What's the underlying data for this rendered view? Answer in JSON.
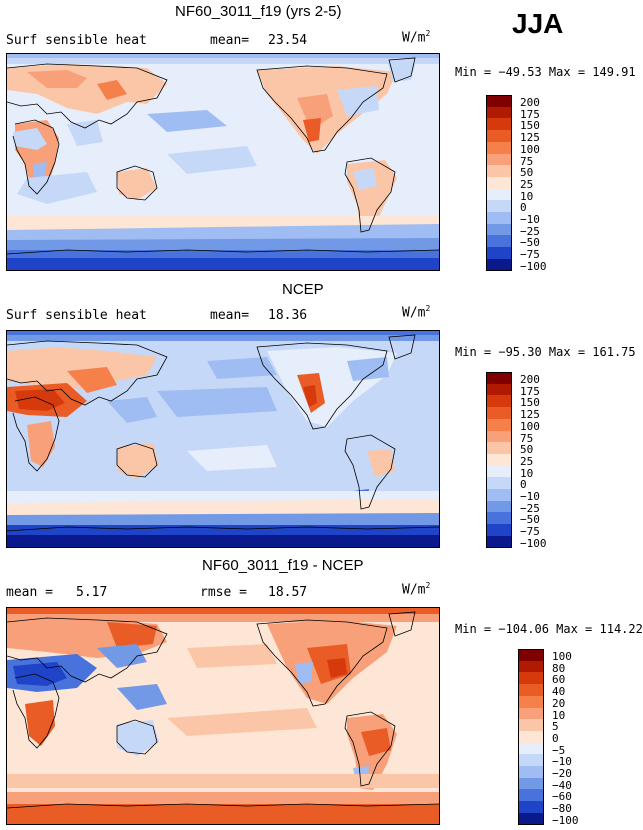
{
  "season": "JJA",
  "panels": [
    {
      "id": "model",
      "title": "NF60_3011_f19 (yrs 2-5)",
      "variable": "Surf sensible heat",
      "stat_label": "mean=",
      "stat_value": "23.54",
      "units_base": "W/m",
      "units_exp": "2",
      "minmax": "Min = −49.53 Max = 149.91"
    },
    {
      "id": "obs",
      "title": "NCEP",
      "variable": "Surf sensible heat",
      "stat_label": "mean=",
      "stat_value": "18.36",
      "units_base": "W/m",
      "units_exp": "2",
      "minmax": "Min = −95.30 Max = 161.75"
    },
    {
      "id": "diff",
      "title": "NF60_3011_f19 - NCEP",
      "mean_label": "mean =",
      "mean_value": "5.17",
      "rmse_label": "rmse =",
      "rmse_value": "18.57",
      "units_base": "W/m",
      "units_exp": "2",
      "minmax": "Min = −104.06 Max = 114.22"
    }
  ],
  "chart_data": [
    {
      "type": "heatmap",
      "title": "NF60_3011_f19 (yrs 2-5) — Surf sensible heat (JJA)",
      "units": "W/m2",
      "mean": 23.54,
      "min": -49.53,
      "max": 149.91,
      "colorbar": {
        "levels": [
          "200",
          "175",
          "150",
          "125",
          "100",
          "75",
          "50",
          "25",
          "10",
          "0",
          "−10",
          "−25",
          "−50",
          "−75",
          "−100"
        ],
        "colors": [
          "#800000",
          "#b01a00",
          "#d63a0c",
          "#ea5c26",
          "#f5804a",
          "#f8a07a",
          "#fbc6a8",
          "#fde6d6",
          "#e6eefb",
          "#c6d8f8",
          "#9fbdf2",
          "#7199e6",
          "#4872dc",
          "#1f44c8",
          "#0a1a8c"
        ]
      }
    },
    {
      "type": "heatmap",
      "title": "NCEP — Surf sensible heat (JJA)",
      "units": "W/m2",
      "mean": 18.36,
      "min": -95.3,
      "max": 161.75,
      "colorbar": {
        "levels": [
          "200",
          "175",
          "150",
          "125",
          "100",
          "75",
          "50",
          "25",
          "10",
          "0",
          "−10",
          "−25",
          "−50",
          "−75",
          "−100"
        ],
        "colors": [
          "#800000",
          "#b01a00",
          "#d63a0c",
          "#ea5c26",
          "#f5804a",
          "#f8a07a",
          "#fbc6a8",
          "#fde6d6",
          "#e6eefb",
          "#c6d8f8",
          "#9fbdf2",
          "#7199e6",
          "#4872dc",
          "#1f44c8",
          "#0a1a8c"
        ]
      }
    },
    {
      "type": "heatmap",
      "title": "NF60_3011_f19 - NCEP (JJA)",
      "units": "W/m2",
      "mean": 5.17,
      "rmse": 18.57,
      "min": -104.06,
      "max": 114.22,
      "colorbar": {
        "levels": [
          "100",
          "80",
          "60",
          "40",
          "20",
          "10",
          "5",
          "0",
          "−5",
          "−10",
          "−20",
          "−40",
          "−60",
          "−80",
          "−100"
        ],
        "colors": [
          "#800000",
          "#b01a00",
          "#d63a0c",
          "#ea5c26",
          "#f5804a",
          "#f8a07a",
          "#fbc6a8",
          "#fde6d6",
          "#e6eefb",
          "#c6d8f8",
          "#9fbdf2",
          "#7199e6",
          "#4872dc",
          "#1f44c8",
          "#0a1a8c"
        ]
      }
    }
  ]
}
